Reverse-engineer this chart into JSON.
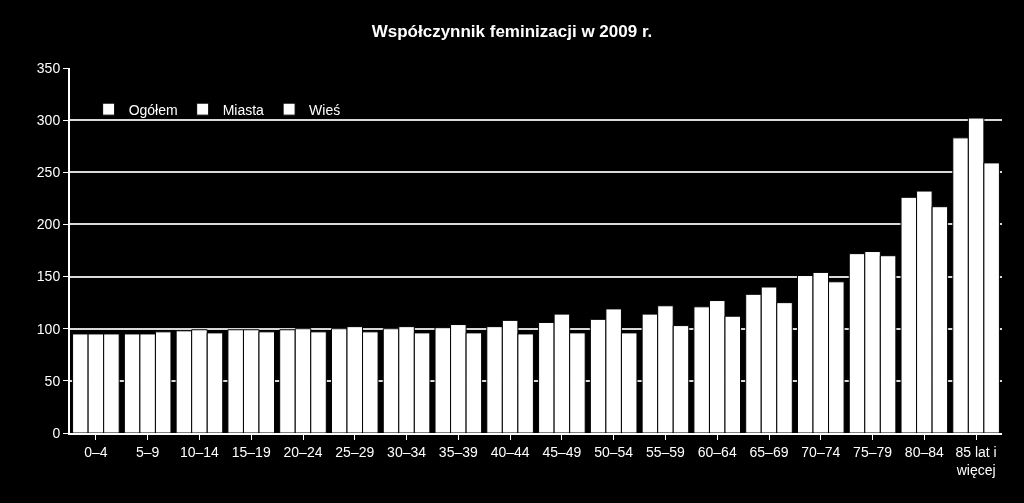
{
  "chart_data": {
    "type": "bar",
    "title": "Współczynnik feminizacji w 2009 r.",
    "categories": [
      "0–4",
      "5–9",
      "10–14",
      "15–19",
      "20–24",
      "25–29",
      "30–34",
      "35–39",
      "40–44",
      "45–49",
      "50–54",
      "55–59",
      "60–64",
      "65–69",
      "70–74",
      "75–79",
      "80–84",
      "85 lat i więcej"
    ],
    "series": [
      {
        "name": "Ogółem",
        "color": "#ffffff",
        "values": [
          95,
          95,
          98,
          99,
          99,
          100,
          100,
          101,
          102,
          106,
          109,
          114,
          121,
          133,
          151,
          172,
          226,
          283
        ]
      },
      {
        "name": "Miasta",
        "color": "#ffffff",
        "values": [
          95,
          95,
          99,
          99,
          100,
          102,
          102,
          104,
          108,
          114,
          119,
          122,
          127,
          140,
          154,
          174,
          232,
          302
        ]
      },
      {
        "name": "Wieś",
        "color": "#ffffff",
        "values": [
          95,
          97,
          96,
          97,
          97,
          97,
          96,
          96,
          95,
          96,
          96,
          103,
          112,
          125,
          145,
          170,
          217,
          259
        ]
      }
    ],
    "ylim": [
      0,
      350
    ],
    "yticks": [
      0,
      50,
      100,
      150,
      200,
      250,
      300,
      350
    ],
    "grid": "y",
    "legend": "top left"
  }
}
